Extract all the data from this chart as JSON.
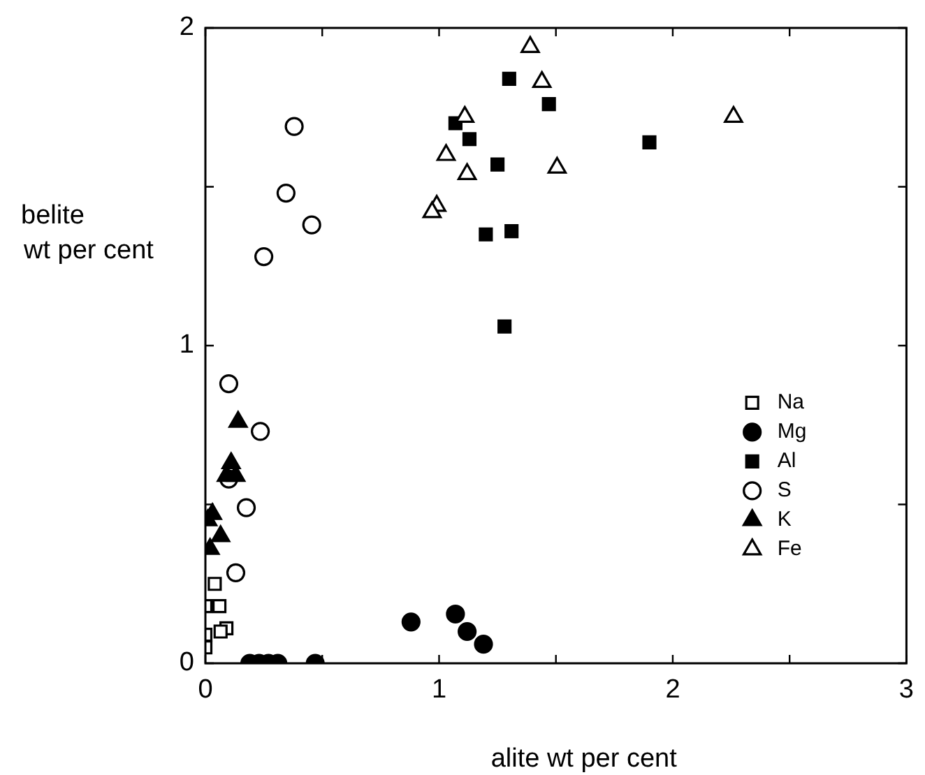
{
  "chart_data": {
    "type": "scatter",
    "xlabel": "alite wt per cent",
    "ylabel": "belite\nwt per cent",
    "xlim": [
      0,
      3
    ],
    "ylim": [
      0,
      2
    ],
    "xticks": [
      0,
      {
        "value": 0.5,
        "label": null
      },
      1,
      {
        "value": 1.5,
        "label": null
      },
      2,
      {
        "value": 2.5,
        "label": null
      },
      3
    ],
    "yticks": [
      0,
      {
        "value": 0.5,
        "label": null
      },
      1,
      {
        "value": 1.5,
        "label": null
      },
      2
    ],
    "legend": "right",
    "series": [
      {
        "name": "Na",
        "color": "#ffffff",
        "marker": "square",
        "x": [
          0.0,
          0.0,
          0.0,
          0.06,
          0.04,
          0.09,
          0.065
        ],
        "values": [
          0.05,
          0.09,
          0.18,
          0.18,
          0.25,
          0.11,
          0.1
        ]
      },
      {
        "name": "Mg",
        "color": "#000000",
        "marker": "circle",
        "x": [
          0.19,
          0.23,
          0.27,
          0.31,
          0.47,
          0.88,
          1.07,
          1.12,
          1.19
        ],
        "values": [
          0,
          0,
          0,
          0,
          0,
          0.13,
          0.155,
          0.1,
          0.06
        ]
      },
      {
        "name": "Al",
        "color": "#000000",
        "marker": "square",
        "x": [
          1.3,
          1.47,
          1.07,
          1.13,
          1.9,
          1.25,
          1.2,
          1.31,
          1.28
        ],
        "values": [
          1.84,
          1.76,
          1.7,
          1.65,
          1.64,
          1.57,
          1.35,
          1.36,
          1.06
        ]
      },
      {
        "name": "S",
        "color": "#ffffff",
        "marker": "circle",
        "x": [
          0.38,
          0.345,
          0.455,
          0.25,
          0.1,
          0.235,
          0.175,
          0.13,
          0.1
        ],
        "values": [
          1.69,
          1.48,
          1.38,
          1.28,
          0.88,
          0.73,
          0.49,
          0.285,
          0.58
        ]
      },
      {
        "name": "K",
        "color": "#000000",
        "marker": "triangle",
        "x": [
          0.14,
          0.11,
          0.13,
          0.09,
          0.03,
          0.01,
          0.065,
          0.02
        ],
        "values": [
          0.76,
          0.63,
          0.59,
          0.59,
          0.47,
          0.45,
          0.4,
          0.36
        ]
      },
      {
        "name": "Fe",
        "color": "#ffffff",
        "marker": "triangle",
        "x": [
          1.39,
          1.44,
          1.11,
          2.26,
          1.03,
          1.12,
          1.505,
          0.99,
          0.97
        ],
        "values": [
          1.94,
          1.83,
          1.72,
          1.72,
          1.6,
          1.54,
          1.56,
          1.44,
          1.42
        ]
      }
    ]
  }
}
